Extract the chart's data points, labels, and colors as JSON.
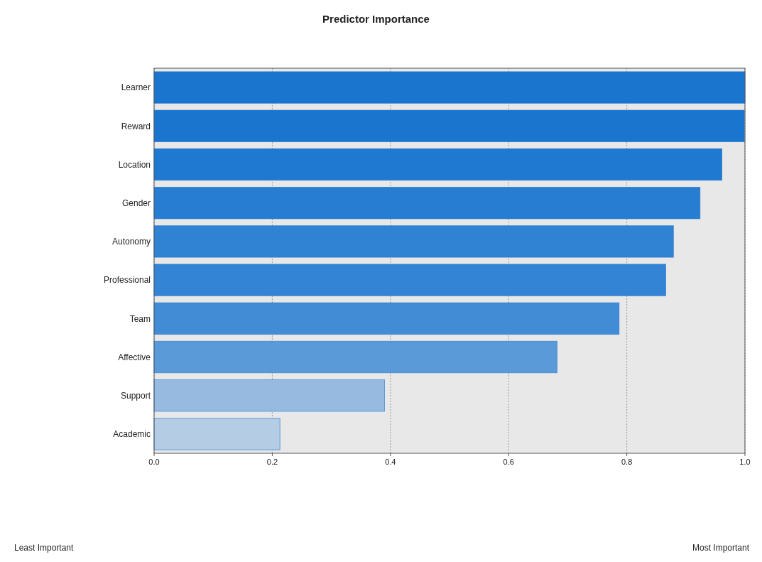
{
  "chart_data": {
    "type": "bar",
    "title": "Predictor Importance",
    "orientation": "horizontal",
    "categories": [
      "Learner",
      "Reward",
      "Location",
      "Gender",
      "Autonomy",
      "Professional",
      "Team",
      "Affective",
      "Support",
      "Academic"
    ],
    "values": [
      1.0,
      0.999,
      0.961,
      0.924,
      0.879,
      0.866,
      0.787,
      0.682,
      0.39,
      0.213
    ],
    "colors": [
      "#1a75cf",
      "#1a75cf",
      "#2079d0",
      "#267dd1",
      "#3082d3",
      "#3384d4",
      "#428bd5",
      "#5a9ad8",
      "#96bae0",
      "#b4cce4"
    ],
    "xlim": [
      0,
      1
    ],
    "xticks": [
      {
        "value": 0,
        "label": "0.0"
      },
      {
        "value": 0.2,
        "label": "0.2"
      },
      {
        "value": 0.4,
        "label": "0.4"
      },
      {
        "value": 0.6,
        "label": "0.6"
      },
      {
        "value": 0.8,
        "label": "0.8"
      },
      {
        "value": 1,
        "label": "1.0"
      }
    ],
    "grid": "x",
    "annotations": [
      "Least Important",
      "Most Important"
    ]
  }
}
